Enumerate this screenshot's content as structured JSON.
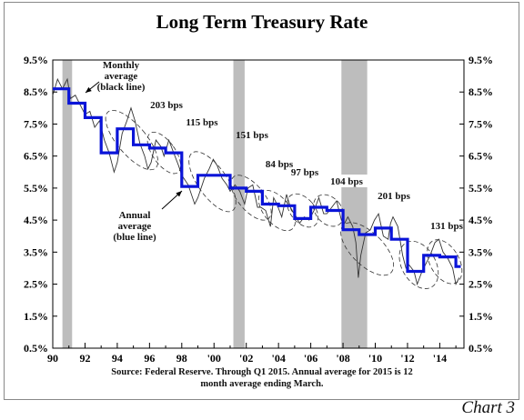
{
  "chart_data": {
    "type": "line",
    "title": "Long Term Treasury Rate",
    "xlabel": "",
    "ylabel": "",
    "xlim": [
      1990,
      2015.5
    ],
    "ylim": [
      0.5,
      9.5
    ],
    "y_ticks": [
      "0.5%",
      "1.5%",
      "2.5%",
      "3.5%",
      "4.5%",
      "5.5%",
      "6.5%",
      "7.5%",
      "8.5%",
      "9.5%"
    ],
    "x_ticks": [
      {
        "x": 1990,
        "label": "90"
      },
      {
        "x": 1992,
        "label": "92"
      },
      {
        "x": 1994,
        "label": "94"
      },
      {
        "x": 1996,
        "label": "96"
      },
      {
        "x": 1998,
        "label": "98"
      },
      {
        "x": 2000,
        "label": "'00"
      },
      {
        "x": 2002,
        "label": "'02"
      },
      {
        "x": 2004,
        "label": "'04"
      },
      {
        "x": 2006,
        "label": "'06"
      },
      {
        "x": 2008,
        "label": "'08"
      },
      {
        "x": 2010,
        "label": "'10"
      },
      {
        "x": 2012,
        "label": "'12"
      },
      {
        "x": 2014,
        "label": "'14"
      }
    ],
    "recessions": [
      [
        1990.6,
        1991.2
      ],
      [
        2001.2,
        2001.9
      ],
      [
        2007.9,
        2009.5
      ]
    ],
    "series": [
      {
        "color": "#0a14d8",
        "style": "step",
        "years": [
          1990,
          1991,
          1992,
          1993,
          1994,
          1995,
          1996,
          1997,
          1998,
          1999,
          2000,
          2001,
          2002,
          2003,
          2004,
          2005,
          2006,
          2007,
          2008,
          2009,
          2010,
          2011,
          2012,
          2013,
          2014,
          2015
        ],
        "values": [
          8.6,
          8.15,
          7.7,
          6.6,
          7.35,
          6.85,
          6.75,
          6.6,
          5.55,
          5.9,
          5.9,
          5.5,
          5.4,
          5.0,
          4.95,
          4.55,
          4.9,
          4.8,
          4.2,
          4.05,
          4.25,
          3.9,
          2.9,
          3.4,
          3.35,
          3.05
        ]
      },
      {
        "color": "#333333",
        "style": "line",
        "points": [
          [
            1990.0,
            8.4
          ],
          [
            1990.3,
            8.9
          ],
          [
            1990.6,
            8.6
          ],
          [
            1990.9,
            8.9
          ],
          [
            1991.1,
            8.3
          ],
          [
            1991.4,
            8.4
          ],
          [
            1991.7,
            8.1
          ],
          [
            1992.0,
            7.8
          ],
          [
            1992.3,
            7.9
          ],
          [
            1992.6,
            7.4
          ],
          [
            1992.9,
            7.6
          ],
          [
            1993.2,
            7.0
          ],
          [
            1993.5,
            6.6
          ],
          [
            1993.8,
            6.0
          ],
          [
            1994.0,
            6.3
          ],
          [
            1994.3,
            7.2
          ],
          [
            1994.6,
            7.6
          ],
          [
            1994.85,
            8.0
          ],
          [
            1995.1,
            7.6
          ],
          [
            1995.4,
            6.9
          ],
          [
            1995.7,
            6.5
          ],
          [
            1995.9,
            6.1
          ],
          [
            1996.1,
            6.3
          ],
          [
            1996.4,
            7.0
          ],
          [
            1996.7,
            6.8
          ],
          [
            1996.9,
            6.5
          ],
          [
            1997.2,
            7.0
          ],
          [
            1997.5,
            6.6
          ],
          [
            1997.8,
            6.2
          ],
          [
            1998.0,
            5.9
          ],
          [
            1998.4,
            5.6
          ],
          [
            1998.8,
            5.0
          ],
          [
            1999.0,
            5.2
          ],
          [
            1999.4,
            5.8
          ],
          [
            1999.7,
            6.1
          ],
          [
            1999.95,
            6.4
          ],
          [
            2000.2,
            6.2
          ],
          [
            2000.5,
            5.8
          ],
          [
            2000.8,
            5.6
          ],
          [
            2001.0,
            5.4
          ],
          [
            2001.3,
            5.6
          ],
          [
            2001.6,
            5.4
          ],
          [
            2001.9,
            5.0
          ],
          [
            2002.1,
            5.5
          ],
          [
            2002.4,
            5.6
          ],
          [
            2002.7,
            4.9
          ],
          [
            2002.9,
            4.9
          ],
          [
            2003.2,
            4.8
          ],
          [
            2003.5,
            4.3
          ],
          [
            2003.7,
            5.2
          ],
          [
            2003.9,
            5.0
          ],
          [
            2004.2,
            4.6
          ],
          [
            2004.5,
            5.3
          ],
          [
            2004.8,
            4.8
          ],
          [
            2005.0,
            4.7
          ],
          [
            2005.3,
            4.4
          ],
          [
            2005.6,
            4.6
          ],
          [
            2005.9,
            4.5
          ],
          [
            2006.2,
            4.8
          ],
          [
            2006.5,
            5.2
          ],
          [
            2006.8,
            4.7
          ],
          [
            2007.0,
            4.7
          ],
          [
            2007.3,
            4.9
          ],
          [
            2007.6,
            5.1
          ],
          [
            2007.9,
            4.5
          ],
          [
            2008.1,
            4.4
          ],
          [
            2008.3,
            4.6
          ],
          [
            2008.6,
            4.3
          ],
          [
            2008.8,
            3.8
          ],
          [
            2008.95,
            2.7
          ],
          [
            2009.1,
            3.4
          ],
          [
            2009.4,
            4.1
          ],
          [
            2009.7,
            4.2
          ],
          [
            2009.95,
            4.5
          ],
          [
            2010.2,
            4.7
          ],
          [
            2010.5,
            4.0
          ],
          [
            2010.8,
            3.9
          ],
          [
            2010.95,
            4.4
          ],
          [
            2011.1,
            4.6
          ],
          [
            2011.4,
            4.3
          ],
          [
            2011.7,
            3.4
          ],
          [
            2011.9,
            3.0
          ],
          [
            2012.1,
            3.1
          ],
          [
            2012.4,
            2.9
          ],
          [
            2012.6,
            2.5
          ],
          [
            2012.9,
            2.9
          ],
          [
            2013.1,
            3.1
          ],
          [
            2013.4,
            3.4
          ],
          [
            2013.7,
            3.8
          ],
          [
            2013.95,
            3.9
          ],
          [
            2014.2,
            3.5
          ],
          [
            2014.5,
            3.3
          ],
          [
            2014.8,
            3.0
          ],
          [
            2015.0,
            2.5
          ],
          [
            2015.2,
            2.7
          ]
        ]
      }
    ],
    "annotations": [
      {
        "text": [
          "Monthly",
          "average",
          "(black line)"
        ],
        "arrow": true
      },
      {
        "text": [
          "Annual",
          "average",
          "(blue line)"
        ],
        "arrow": true
      },
      {
        "text": [
          "203 bps"
        ]
      },
      {
        "text": [
          "115 bps"
        ]
      },
      {
        "text": [
          "151 bps"
        ]
      },
      {
        "text": [
          "84 bps"
        ]
      },
      {
        "text": [
          "97 bps"
        ]
      },
      {
        "text": [
          "104 bps"
        ]
      },
      {
        "text": [
          "201 bps"
        ]
      },
      {
        "text": [
          "131 bps"
        ]
      }
    ],
    "source": [
      "Source: Federal Reserve. Through Q1 2015. Annual average for 2015 is 12",
      "month average ending March."
    ]
  },
  "footer_label": "Chart 3"
}
